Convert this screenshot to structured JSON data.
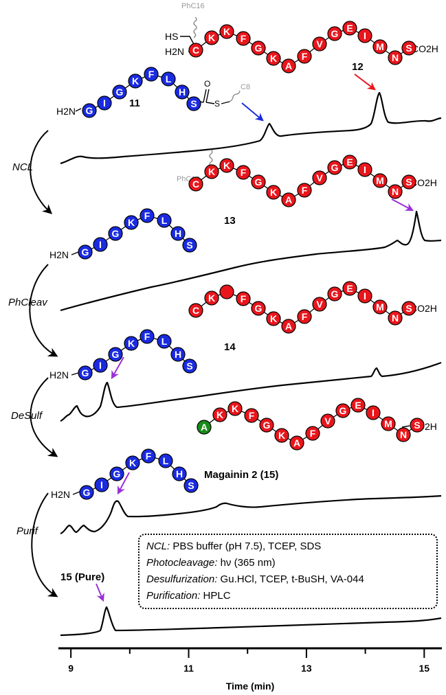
{
  "compounds": {
    "c11": {
      "label": "11",
      "seq": [
        "G",
        "I",
        "G",
        "K",
        "F",
        "L",
        "H",
        "S"
      ],
      "thioester_label": "C8"
    },
    "c12": {
      "label": "12",
      "seq": [
        "C",
        "K",
        "K",
        "F",
        "G",
        "K",
        "A",
        "F",
        "V",
        "G",
        "E",
        "I",
        "M",
        "N",
        "S"
      ],
      "side_label": "PhC16",
      "thiol_label": "HS",
      "acid_label": "CO2H"
    },
    "c13": {
      "label": "13",
      "side_label": "PhC16"
    },
    "c14": {
      "label": "14"
    },
    "c15": {
      "label": "Magainin 2 (15)",
      "pure_label": "15 (Pure)",
      "ala_residue": "A"
    }
  },
  "terminal_labels": {
    "amine": "H2N",
    "acid": "CO2H"
  },
  "steps": [
    "NCL",
    "PhCleav",
    "DeSulf",
    "Purif"
  ],
  "conditions": [
    {
      "key": "NCL:",
      "text": " PBS buffer (pH 7.5), TCEP, SDS"
    },
    {
      "key": "Photocleavage:",
      "text": " hν (365 nm)"
    },
    {
      "key": "Desulfurization:",
      "text": " Gu.HCl, TCEP, t-BuSH, VA-044"
    },
    {
      "key": "Purification:",
      "text": " HPLC"
    }
  ],
  "axis": {
    "label": "Time (min)",
    "ticks": [
      "9",
      "11",
      "13",
      "15"
    ],
    "min": 8.8,
    "max": 15.3
  },
  "colors": {
    "blue": "#1a2be0",
    "red": "#e8161c",
    "green": "#1a8a1a",
    "purple": "#9b30d9"
  }
}
